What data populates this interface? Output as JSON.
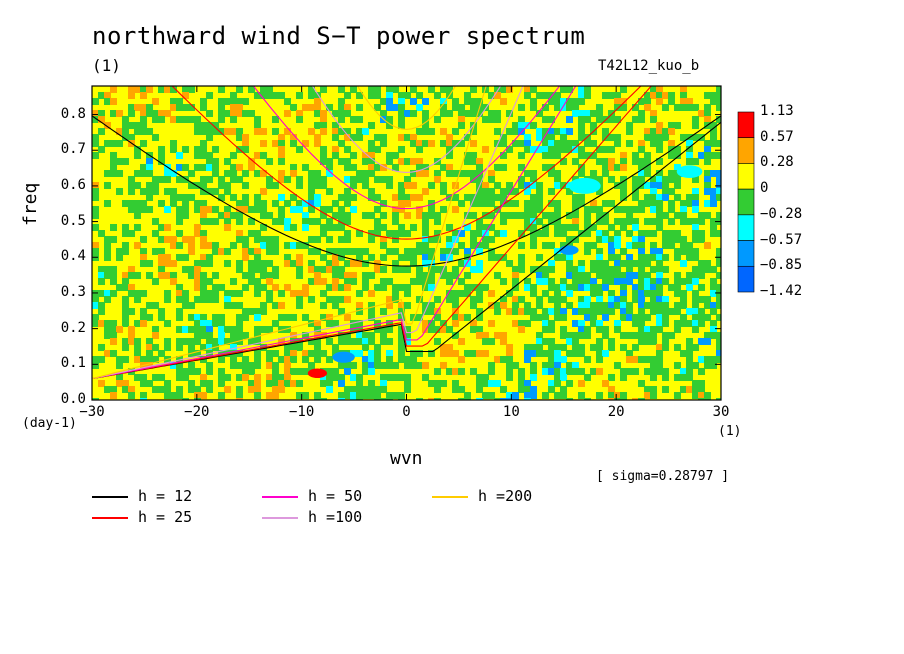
{
  "title": "northward wind S−T power spectrum",
  "unit_top": "(1)",
  "run_label": "T42L12_kuo_b",
  "ylabel": "freq",
  "xlabel": "wvn",
  "yunit": "(day-1)",
  "xunit": "(1)",
  "sigma_text": "[ sigma=0.28797 ]",
  "colors": {
    "band_lt_m142": "#0066ff",
    "band_m142_m085": "#0099ff",
    "band_m085_m057": "#00ffff",
    "band_m057_m028": "#33cc33",
    "band_m028_0": "#33cc33",
    "band_0_028": "#ffff00",
    "band_028_057": "#ffa500",
    "band_gt_057": "#ff0000",
    "h12": "#000000",
    "h25": "#ff0000",
    "h50": "#ff00cc",
    "h100": "#dd99dd",
    "h200": "#ffcc00"
  },
  "chart_data": {
    "type": "heatmap",
    "title": "northward wind S−T power spectrum",
    "xlabel": "wvn",
    "ylabel": "freq",
    "xlim": [
      -30,
      30
    ],
    "ylim": [
      0,
      0.88
    ],
    "x_ticks": [
      "−30",
      "−20",
      "−10",
      "0",
      "10",
      "20",
      "30"
    ],
    "y_ticks": [
      "0.0",
      "0.1",
      "0.2",
      "0.3",
      "0.4",
      "0.5",
      "0.6",
      "0.7",
      "0.8"
    ],
    "colorbar_levels": [
      "1.13",
      "0.57",
      "0.28",
      "0",
      "−0.28",
      "−0.57",
      "−0.85",
      "−1.42"
    ],
    "sigma": 0.28797,
    "dispersion_curves": [
      {
        "name": "h = 12",
        "h": 12
      },
      {
        "name": "h = 25",
        "h": 25
      },
      {
        "name": "h = 50",
        "h": 50
      },
      {
        "name": "h =100",
        "h": 100
      },
      {
        "name": "h =200",
        "h": 200
      }
    ]
  }
}
